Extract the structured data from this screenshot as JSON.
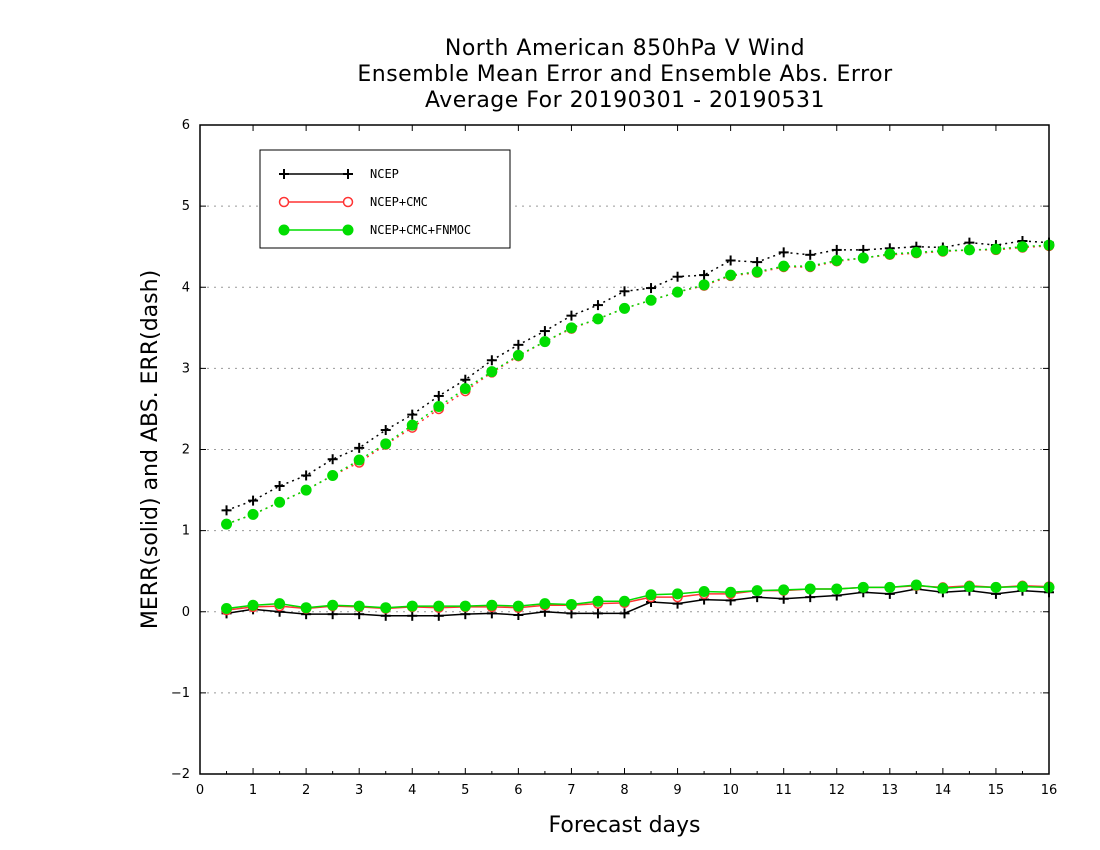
{
  "chart_data": {
    "type": "line",
    "title": "North American 850hPa V Wind",
    "subtitle": "Ensemble Mean Error and Ensemble Abs. Error",
    "subtitle2": "Average For 20190301 - 20190531",
    "xlabel": "Forecast days",
    "ylabel": "MERR(solid) and ABS. ERR(dash)",
    "xlim": [
      0,
      16
    ],
    "ylim": [
      -2,
      6
    ],
    "xticks": [
      "0",
      "1",
      "2",
      "3",
      "4",
      "5",
      "6",
      "7",
      "8",
      "9",
      "10",
      "11",
      "12",
      "13",
      "14",
      "15",
      "16"
    ],
    "yticks": [
      "−2",
      "−1",
      "0",
      "1",
      "2",
      "3",
      "4",
      "5",
      "6"
    ],
    "grid": "horizontal dotted",
    "legend_position": "top-left",
    "x": [
      0.5,
      1,
      1.5,
      2,
      2.5,
      3,
      3.5,
      4,
      4.5,
      5,
      5.5,
      6,
      6.5,
      7,
      7.5,
      8,
      8.5,
      9,
      9.5,
      10,
      10.5,
      11,
      11.5,
      12,
      12.5,
      13,
      13.5,
      14,
      14.5,
      15,
      15.5,
      16
    ],
    "series": [
      {
        "name": "NCEP",
        "color": "#000000",
        "marker": "plus",
        "merr": [
          -0.02,
          0.03,
          0.0,
          -0.03,
          -0.03,
          -0.03,
          -0.05,
          -0.05,
          -0.05,
          -0.03,
          -0.02,
          -0.04,
          0.0,
          -0.02,
          -0.02,
          -0.02,
          0.12,
          0.1,
          0.15,
          0.14,
          0.18,
          0.16,
          0.18,
          0.2,
          0.24,
          0.22,
          0.28,
          0.24,
          0.26,
          0.22,
          0.26,
          0.24
        ],
        "abs_err": [
          1.25,
          1.37,
          1.55,
          1.68,
          1.88,
          2.02,
          2.24,
          2.43,
          2.66,
          2.86,
          3.1,
          3.29,
          3.46,
          3.65,
          3.78,
          3.95,
          3.99,
          4.13,
          4.15,
          4.33,
          4.31,
          4.43,
          4.4,
          4.46,
          4.46,
          4.48,
          4.5,
          4.49,
          4.55,
          4.52,
          4.57,
          4.55
        ]
      },
      {
        "name": "NCEP+CMC",
        "color": "#ff3333",
        "marker": "open-circle",
        "merr": [
          0.02,
          0.06,
          0.07,
          0.04,
          0.07,
          0.06,
          0.04,
          0.06,
          0.05,
          0.06,
          0.06,
          0.05,
          0.08,
          0.08,
          0.1,
          0.11,
          0.18,
          0.18,
          0.22,
          0.22,
          0.26,
          0.26,
          0.28,
          0.28,
          0.3,
          0.3,
          0.32,
          0.3,
          0.32,
          0.3,
          0.32,
          0.31
        ],
        "abs_err": [
          1.08,
          1.2,
          1.35,
          1.5,
          1.68,
          1.84,
          2.06,
          2.27,
          2.5,
          2.72,
          2.95,
          3.15,
          3.33,
          3.49,
          3.61,
          3.74,
          3.84,
          3.94,
          4.02,
          4.14,
          4.18,
          4.25,
          4.25,
          4.32,
          4.36,
          4.4,
          4.42,
          4.44,
          4.46,
          4.46,
          4.49,
          4.51
        ]
      },
      {
        "name": "NCEP+CMC+FNMOC",
        "color": "#00dd00",
        "marker": "filled-circle",
        "merr": [
          0.04,
          0.08,
          0.1,
          0.05,
          0.08,
          0.07,
          0.05,
          0.07,
          0.07,
          0.07,
          0.08,
          0.07,
          0.1,
          0.09,
          0.13,
          0.13,
          0.21,
          0.22,
          0.25,
          0.24,
          0.26,
          0.27,
          0.28,
          0.28,
          0.3,
          0.3,
          0.33,
          0.29,
          0.31,
          0.3,
          0.31,
          0.3
        ],
        "abs_err": [
          1.08,
          1.2,
          1.35,
          1.5,
          1.68,
          1.87,
          2.07,
          2.3,
          2.53,
          2.75,
          2.96,
          3.16,
          3.33,
          3.5,
          3.61,
          3.74,
          3.84,
          3.94,
          4.03,
          4.15,
          4.19,
          4.26,
          4.26,
          4.33,
          4.36,
          4.41,
          4.43,
          4.45,
          4.46,
          4.47,
          4.5,
          4.52
        ]
      }
    ]
  }
}
